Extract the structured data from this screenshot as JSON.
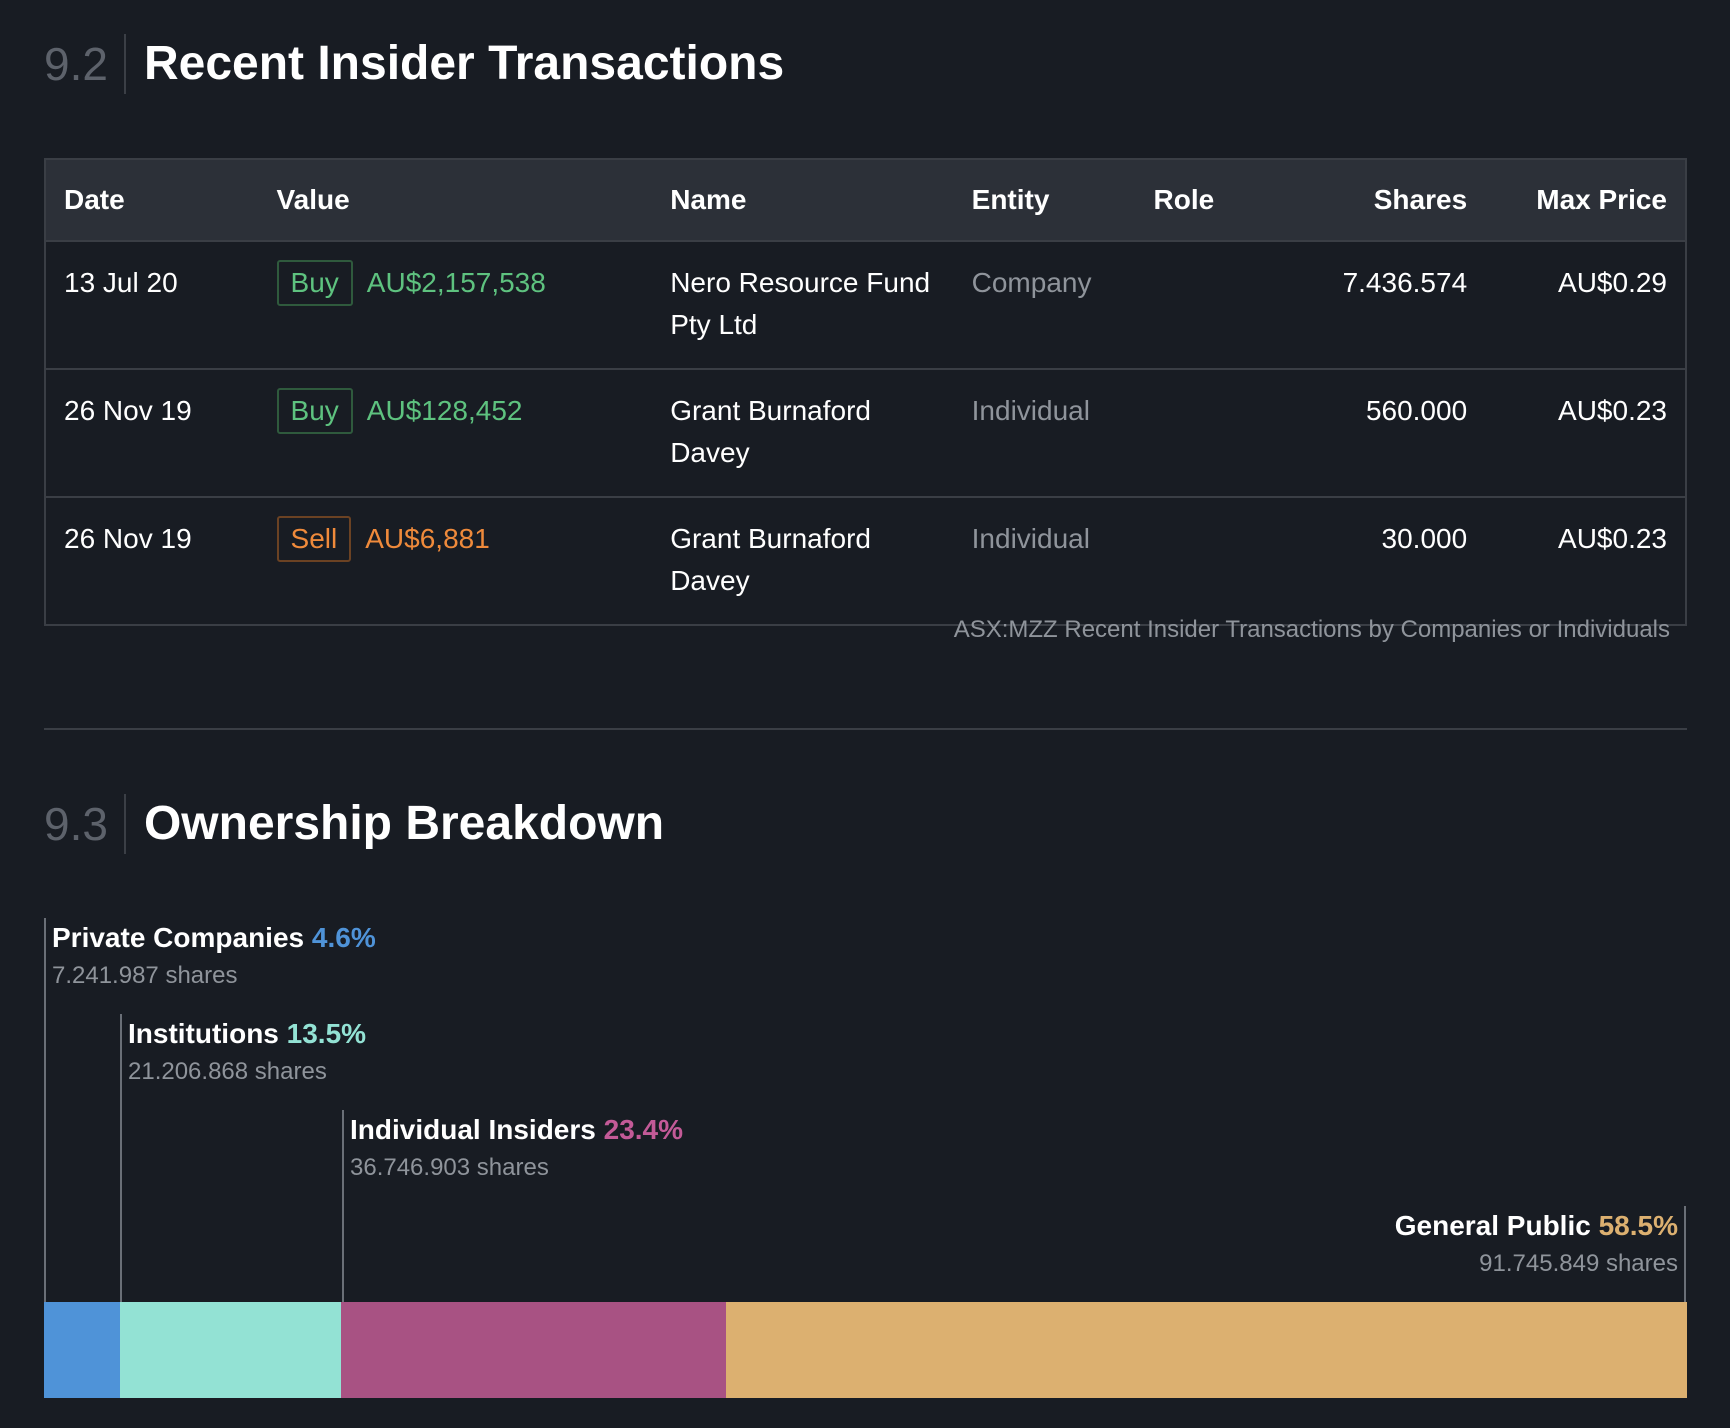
{
  "insider": {
    "section_number": "9.2",
    "section_title": "Recent Insider Transactions",
    "columns": [
      "Date",
      "Value",
      "Name",
      "Entity",
      "Role",
      "Shares",
      "Max Price"
    ],
    "rows": [
      {
        "date": "13 Jul 20",
        "type": "Buy",
        "value": "AU$2,157,538",
        "name_line1": "Nero Resource Fund",
        "name_line2": "Pty Ltd",
        "entity": "Company",
        "role": "",
        "shares": "7.436.574",
        "max_price": "AU$0.29"
      },
      {
        "date": "26 Nov 19",
        "type": "Buy",
        "value": "AU$128,452",
        "name_line1": "Grant Burnaford",
        "name_line2": "Davey",
        "entity": "Individual",
        "role": "",
        "shares": "560.000",
        "max_price": "AU$0.23"
      },
      {
        "date": "26 Nov 19",
        "type": "Sell",
        "value": "AU$6,881",
        "name_line1": "Grant Burnaford",
        "name_line2": "Davey",
        "entity": "Individual",
        "role": "",
        "shares": "30.000",
        "max_price": "AU$0.23"
      }
    ],
    "caption": "ASX:MZZ Recent Insider Transactions by Companies or Individuals"
  },
  "ownership": {
    "section_number": "9.3",
    "section_title": "Ownership Breakdown",
    "segments": [
      {
        "name": "Private Companies",
        "pct": "4.6%",
        "pct_value": 4.6,
        "shares": "7.241.987 shares",
        "color": "#4f93d8"
      },
      {
        "name": "Institutions",
        "pct": "13.5%",
        "pct_value": 13.5,
        "shares": "21.206.868 shares",
        "color": "#93e2d4"
      },
      {
        "name": "Individual Insiders",
        "pct": "23.4%",
        "pct_value": 23.4,
        "shares": "36.746.903 shares",
        "color": "#a85283"
      },
      {
        "name": "General Public",
        "pct": "58.5%",
        "pct_value": 58.5,
        "shares": "91.745.849 shares",
        "color": "#dcb070"
      }
    ]
  },
  "colors": {
    "buy": "#5ec27f",
    "sell": "#ef8a3b",
    "background": "#181c23"
  }
}
